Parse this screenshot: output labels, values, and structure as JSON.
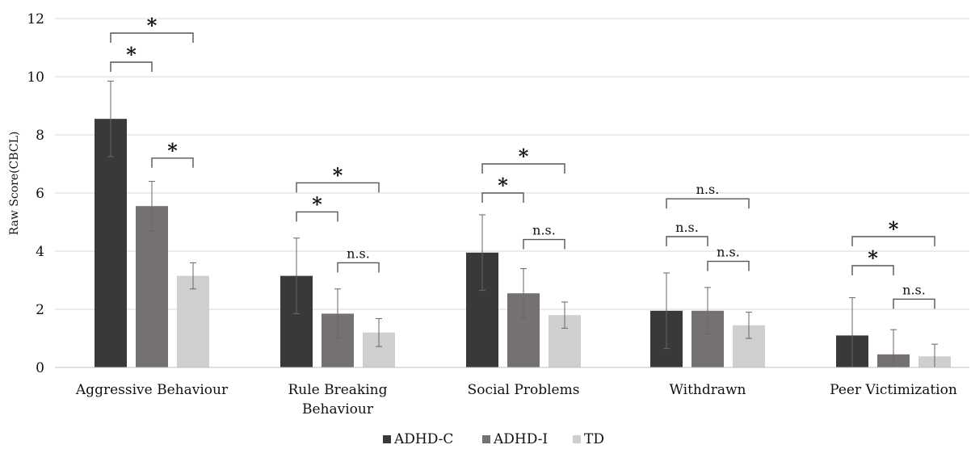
{
  "chart_data": {
    "type": "bar",
    "title": "",
    "xlabel": "",
    "ylabel": "Raw Score(CBCL)",
    "ylim": [
      0,
      12
    ],
    "yticks": [
      "0",
      "2",
      "4",
      "6",
      "8",
      "10",
      "12"
    ],
    "grid": true,
    "legend_position": "bottom",
    "categories": [
      [
        "Aggressive Behaviour"
      ],
      [
        "Rule Breaking",
        "Behaviour"
      ],
      [
        "Social Problems"
      ],
      [
        "Withdrawn"
      ],
      [
        "Peer Victimization"
      ]
    ],
    "series": [
      {
        "name": "ADHD-C",
        "color": "#3b3838",
        "values": [
          8.55,
          3.15,
          3.95,
          1.95,
          1.1
        ],
        "error": [
          1.3,
          1.3,
          1.3,
          1.3,
          1.3
        ]
      },
      {
        "name": "ADHD-I",
        "color": "#767171",
        "values": [
          5.55,
          1.85,
          2.55,
          1.95,
          0.45
        ],
        "error": [
          0.85,
          0.85,
          0.85,
          0.8,
          0.85
        ]
      },
      {
        "name": "TD",
        "color": "#d0cece",
        "values": [
          3.15,
          1.2,
          1.8,
          1.45,
          0.38
        ],
        "error": [
          0.45,
          0.48,
          0.45,
          0.45,
          0.42
        ]
      }
    ],
    "significance": [
      [
        {
          "from": 0,
          "to": 1,
          "y": 10.5,
          "label": "*"
        },
        {
          "from": 0,
          "to": 2,
          "y": 11.5,
          "label": "*"
        },
        {
          "from": 1,
          "to": 2,
          "y": 7.2,
          "label": "*"
        }
      ],
      [
        {
          "from": 0,
          "to": 1,
          "y": 5.35,
          "label": "*"
        },
        {
          "from": 0,
          "to": 2,
          "y": 6.35,
          "label": "*"
        },
        {
          "from": 1,
          "to": 2,
          "y": 3.6,
          "label": "n.s."
        }
      ],
      [
        {
          "from": 0,
          "to": 1,
          "y": 6.0,
          "label": "*"
        },
        {
          "from": 0,
          "to": 2,
          "y": 7.0,
          "label": "*"
        },
        {
          "from": 1,
          "to": 2,
          "y": 4.4,
          "label": "n.s."
        }
      ],
      [
        {
          "from": 0,
          "to": 1,
          "y": 4.5,
          "label": "n.s."
        },
        {
          "from": 0,
          "to": 2,
          "y": 5.8,
          "label": "n.s."
        },
        {
          "from": 1,
          "to": 2,
          "y": 3.65,
          "label": "n.s."
        }
      ],
      [
        {
          "from": 0,
          "to": 1,
          "y": 3.5,
          "label": "*"
        },
        {
          "from": 0,
          "to": 2,
          "y": 4.5,
          "label": "*"
        },
        {
          "from": 1,
          "to": 2,
          "y": 2.35,
          "label": "n.s."
        }
      ]
    ]
  }
}
